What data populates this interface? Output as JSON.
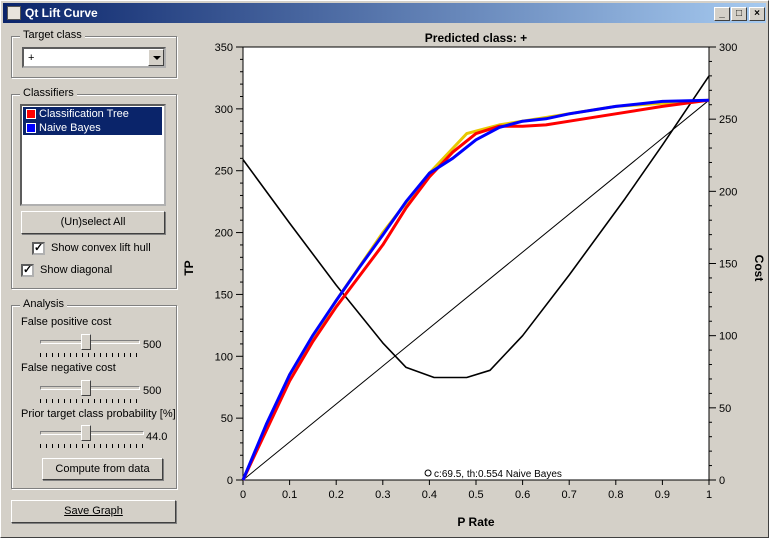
{
  "window": {
    "title": "Qt Lift Curve",
    "buttons": [
      "_",
      "□",
      "×"
    ]
  },
  "target_class": {
    "label": "Target class",
    "selected": "+"
  },
  "classifiers": {
    "label": "Classifiers",
    "items": [
      {
        "name": "Classification Tree",
        "color": "#ff0000"
      },
      {
        "name": "Naive Bayes",
        "color": "#0000ff"
      }
    ],
    "select_all_label": "(Un)select All",
    "show_convex_hull": {
      "label": "Show convex lift hull",
      "checked": true
    },
    "show_diagonal": {
      "label": "Show diagonal",
      "checked": true
    }
  },
  "analysis": {
    "label": "Analysis",
    "fp_cost": {
      "label": "False positive cost",
      "value": "500",
      "level": 0.46
    },
    "fn_cost": {
      "label": "False negative cost",
      "value": "500",
      "level": 0.46
    },
    "prior": {
      "label": "Prior target class probability [%]",
      "value": "44.0",
      "level": 0.44
    },
    "compute_label": "Compute from data"
  },
  "save_graph_label": "Save Graph",
  "chart_data": {
    "type": "line",
    "title": "Predicted class: +",
    "xlabel": "P Rate",
    "ylabel": "TP",
    "y2label": "Cost",
    "xlim": [
      0,
      1
    ],
    "ylim": [
      0,
      350
    ],
    "y2lim": [
      0,
      300
    ],
    "xticks": [
      "0",
      "0.1",
      "0.2",
      "0.3",
      "0.4",
      "0.5",
      "0.6",
      "0.7",
      "0.8",
      "0.9",
      "1"
    ],
    "yticks": [
      "0",
      "50",
      "100",
      "150",
      "200",
      "250",
      "300",
      "350"
    ],
    "y2ticks": [
      "0",
      "50",
      "100",
      "150",
      "200",
      "250",
      "300"
    ],
    "annotation": "c:69.5, th:0.554 Naive Bayes",
    "annotation_point": {
      "x": 0.41,
      "y": 0
    },
    "series": [
      {
        "name": "Classification Tree",
        "axis": "left",
        "color": "#ff0000",
        "x": [
          0,
          0.05,
          0.1,
          0.15,
          0.2,
          0.25,
          0.3,
          0.35,
          0.4,
          0.45,
          0.5,
          0.55,
          0.6,
          0.65,
          0.7,
          0.8,
          0.9,
          1.0
        ],
        "y": [
          0,
          40,
          80,
          112,
          140,
          165,
          190,
          220,
          245,
          265,
          280,
          286,
          286,
          287,
          290,
          296,
          302,
          307
        ]
      },
      {
        "name": "Naive Bayes",
        "axis": "left",
        "color": "#0000ff",
        "x": [
          0,
          0.05,
          0.1,
          0.15,
          0.2,
          0.25,
          0.3,
          0.35,
          0.4,
          0.45,
          0.5,
          0.55,
          0.6,
          0.65,
          0.7,
          0.8,
          0.9,
          1.0
        ],
        "y": [
          0,
          45,
          85,
          117,
          145,
          172,
          198,
          225,
          248,
          260,
          275,
          285,
          290,
          292,
          296,
          302,
          306,
          307
        ]
      },
      {
        "name": "Convex hull",
        "axis": "left",
        "color": "#e8c800",
        "x": [
          0,
          0.1,
          0.2,
          0.3,
          0.4,
          0.48,
          0.55,
          0.65,
          0.8,
          1.0
        ],
        "y": [
          0,
          85,
          145,
          200,
          248,
          280,
          287,
          293,
          302,
          307
        ]
      },
      {
        "name": "Cost",
        "axis": "right",
        "color": "#000000",
        "x": [
          0,
          0.1,
          0.2,
          0.3,
          0.35,
          0.41,
          0.48,
          0.53,
          0.6,
          0.7,
          0.82,
          0.9,
          1.0
        ],
        "y": [
          222,
          178,
          135,
          95,
          78,
          71,
          71,
          76,
          100,
          142,
          195,
          232,
          280
        ]
      },
      {
        "name": "Diagonal",
        "axis": "left",
        "color": "#000000",
        "x": [
          0,
          1
        ],
        "y": [
          0,
          307
        ]
      }
    ]
  }
}
